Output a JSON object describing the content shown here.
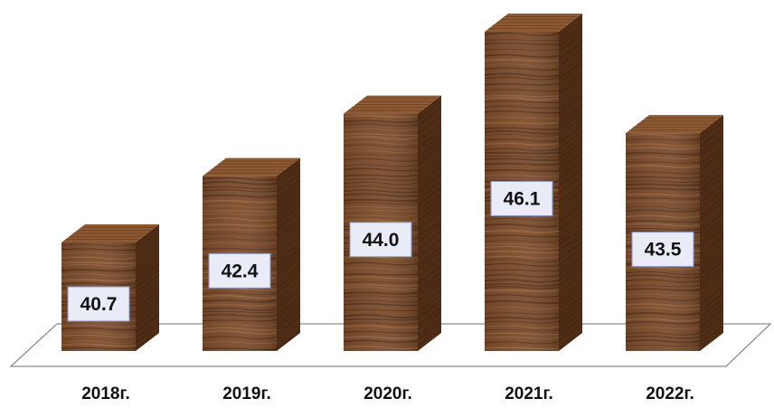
{
  "chart_data": {
    "type": "bar",
    "style": "3d-column",
    "title": "",
    "xlabel": "",
    "ylabel": "",
    "categories": [
      "2018г.",
      "2019г.",
      "2020г.",
      "2021г.",
      "2022г."
    ],
    "values": [
      40.7,
      42.4,
      44.0,
      46.1,
      43.5
    ],
    "value_labels": [
      "40.7",
      "42.4",
      "44.0",
      "46.1",
      "43.5"
    ],
    "ylim": [
      38,
      47
    ],
    "grid": false,
    "legend": "none",
    "colors": {
      "bar_front": "#7a4a2a",
      "bar_top": "#8e5a33",
      "bar_side": "#4e2c16",
      "grain_dark": "#3e2210",
      "grain_light": "#b07a4c",
      "label_bg": "#e9ecf7",
      "label_border": "#8a94c2",
      "text": "#111111",
      "floor": "#8c8c8c"
    }
  }
}
